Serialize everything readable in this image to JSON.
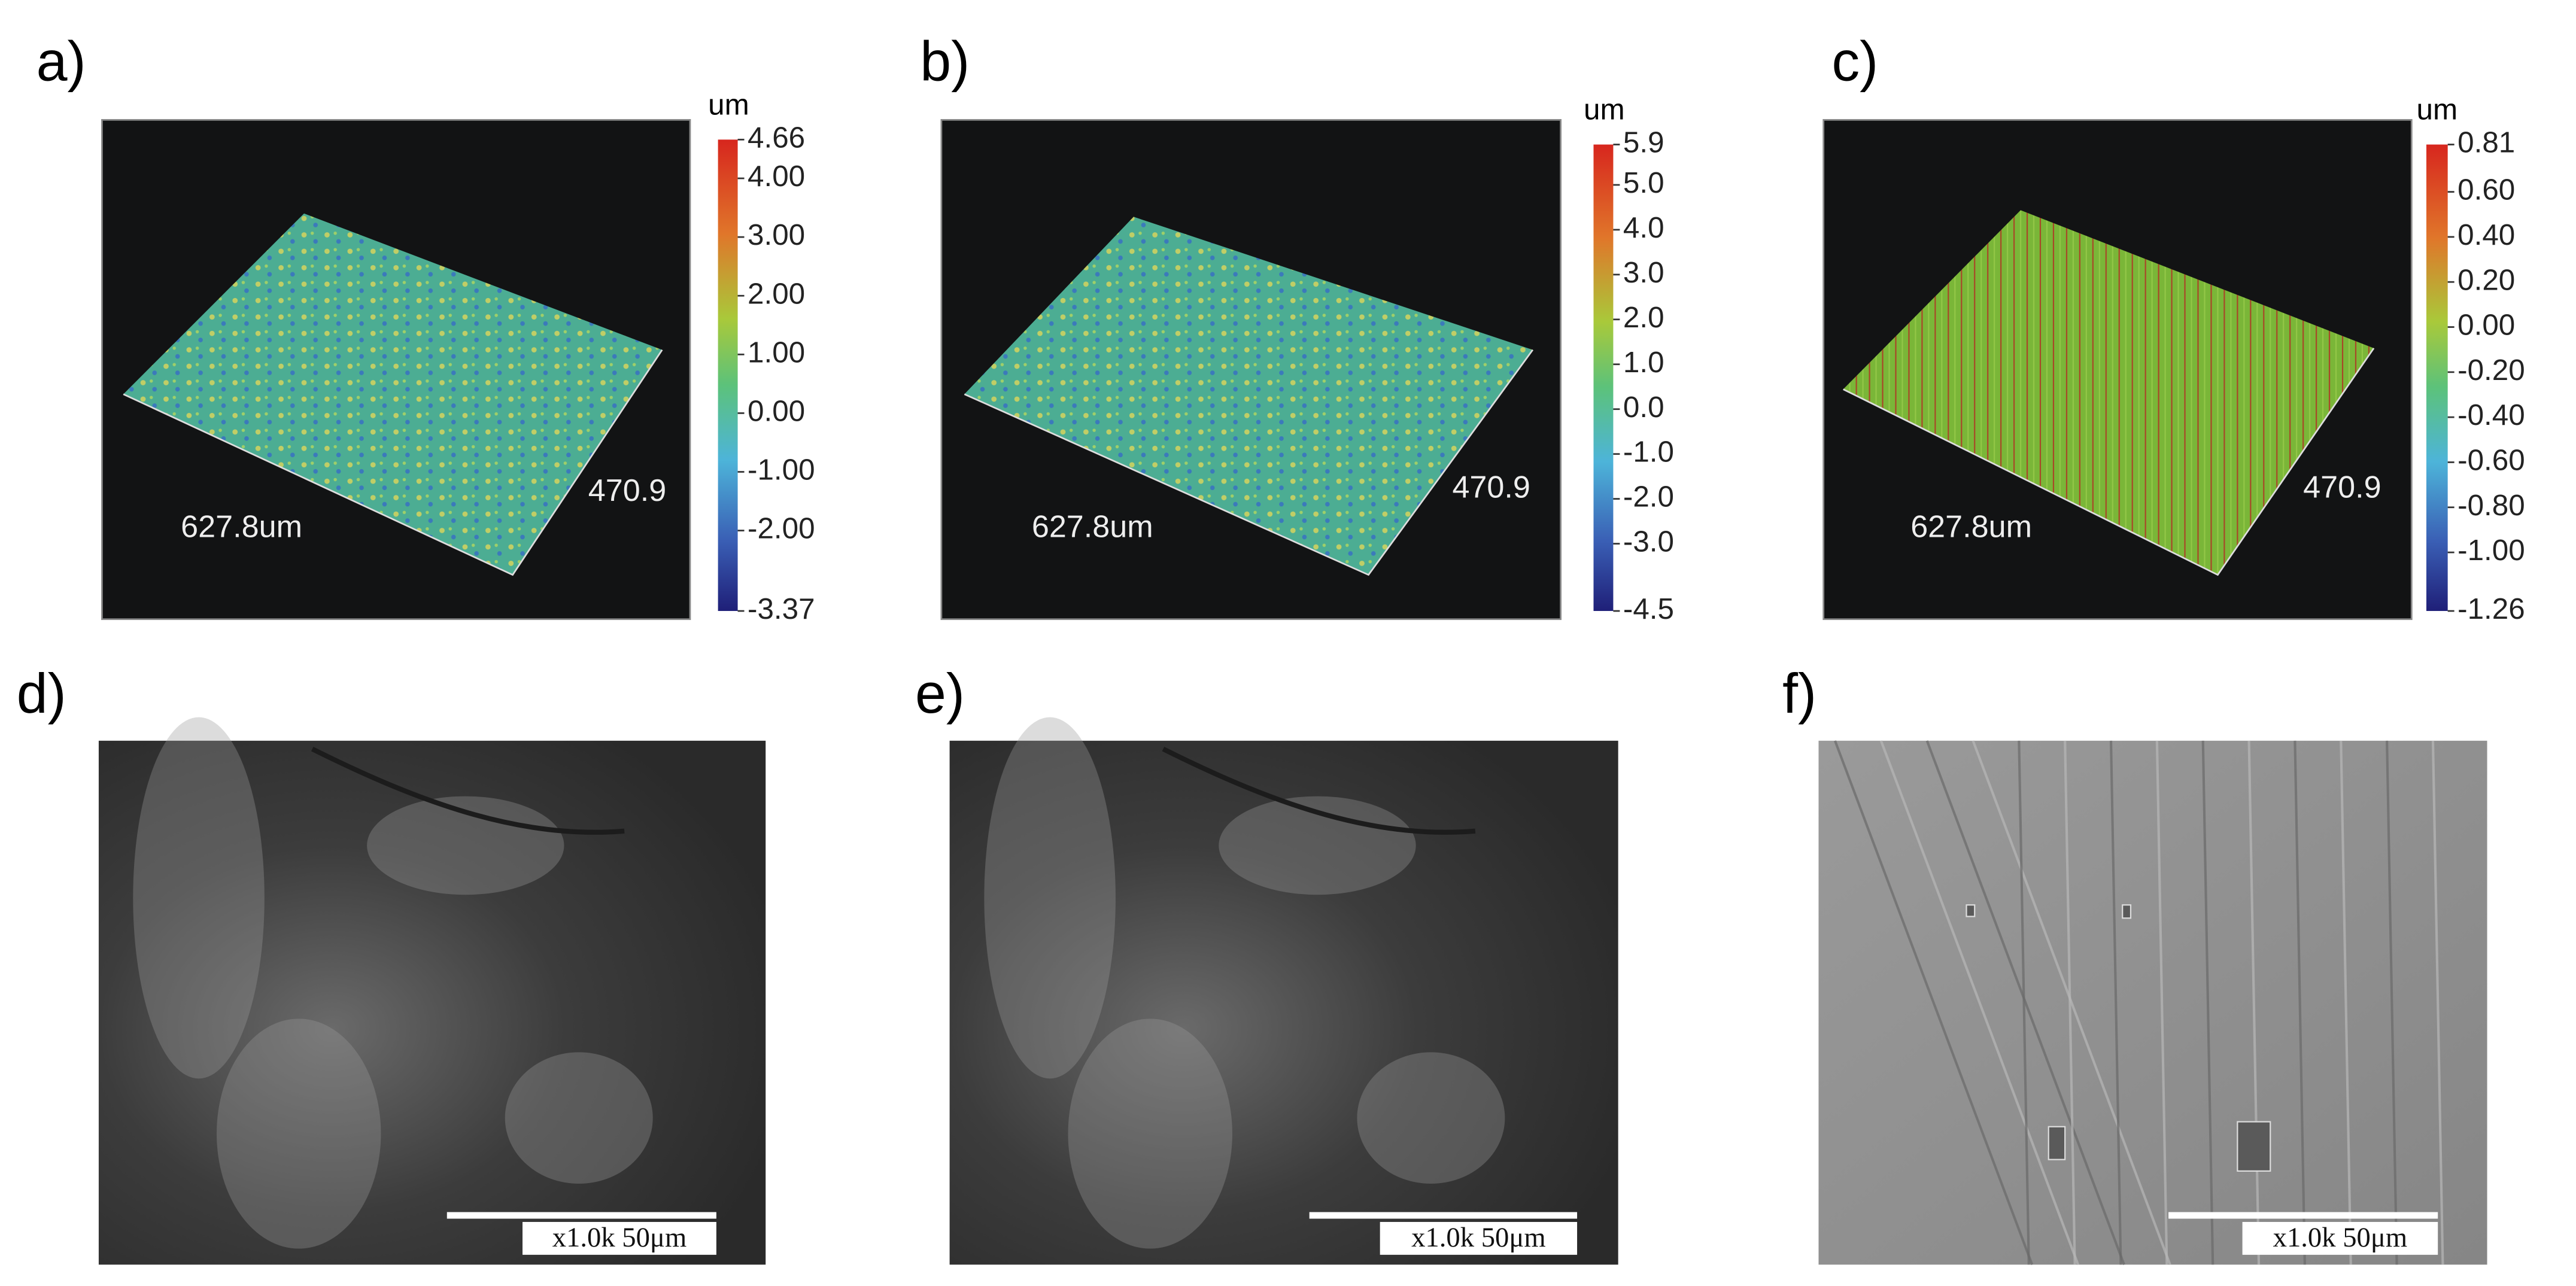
{
  "panels": [
    {
      "label": "a)",
      "unit": "um",
      "colorbar": [
        "4.66",
        "4.00",
        "3.00",
        "2.00",
        "1.00",
        "0.00",
        "-1.00",
        "-2.00",
        "-3.37"
      ],
      "x_dim": "627.8um",
      "y_dim": "470.9"
    },
    {
      "label": "b)",
      "unit": "um",
      "colorbar": [
        "5.9",
        "5.0",
        "4.0",
        "3.0",
        "2.0",
        "1.0",
        "0.0",
        "-1.0",
        "-2.0",
        "-3.0",
        "-4.5"
      ],
      "x_dim": "627.8um",
      "y_dim": "470.9"
    },
    {
      "label": "c)",
      "unit": "um",
      "colorbar": [
        "0.81",
        "0.60",
        "0.40",
        "0.20",
        "0.00",
        "-0.20",
        "-0.40",
        "-0.60",
        "-0.80",
        "-1.00",
        "-1.26"
      ],
      "x_dim": "627.8um",
      "y_dim": "470.9"
    },
    {
      "label": "d)",
      "scale_bar": "x1.0k 50μm"
    },
    {
      "label": "e)",
      "scale_bar": "x1.0k 50μm"
    },
    {
      "label": "f)",
      "scale_bar": "x1.0k 50μm"
    }
  ]
}
